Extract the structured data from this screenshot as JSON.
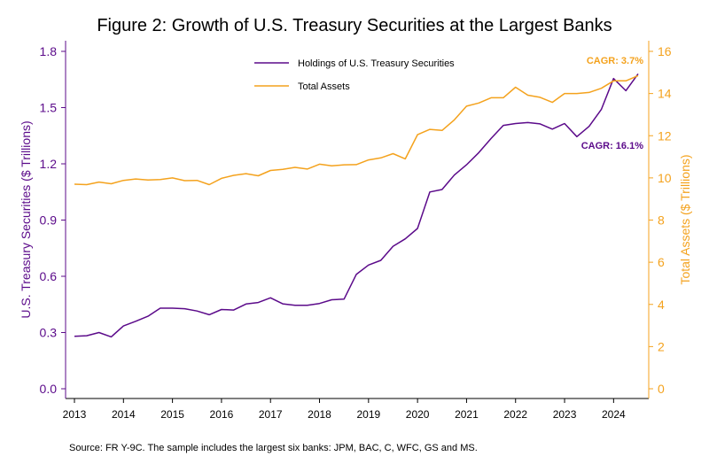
{
  "chart_data": {
    "type": "line",
    "title": "Figure 2: Growth of U.S. Treasury Securities at the Largest Banks",
    "source": "Source: FR Y-9C. The sample includes the largest six banks: JPM, BAC, C, WFC, GS and MS.",
    "x_ticks": [
      "2013",
      "2014",
      "2015",
      "2016",
      "2017",
      "2018",
      "2019",
      "2020",
      "2021",
      "2022",
      "2023",
      "2024"
    ],
    "xlim": [
      2013,
      2024.6
    ],
    "left_axis": {
      "label": "U.S. Treasury Securities ($ Trillions)",
      "ylim": [
        0,
        1.8
      ],
      "ticks": [
        "0.0",
        "0.3",
        "0.6",
        "0.9",
        "1.2",
        "1.5",
        "1.8"
      ],
      "color": "#5b0a8a"
    },
    "right_axis": {
      "label": "Total Assets ($ Trillions)",
      "ylim": [
        0,
        16
      ],
      "ticks": [
        "0",
        "2",
        "4",
        "6",
        "8",
        "10",
        "12",
        "14",
        "16"
      ],
      "color": "#f4a21d"
    },
    "series": [
      {
        "name": "Holdings of U.S. Treasury Securities",
        "axis": "left",
        "color": "#5b0a8a",
        "annotation": "CAGR: 16.1%",
        "x": [
          2013.0,
          2013.25,
          2013.5,
          2013.75,
          2014.0,
          2014.25,
          2014.5,
          2014.75,
          2015.0,
          2015.25,
          2015.5,
          2015.75,
          2016.0,
          2016.25,
          2016.5,
          2016.75,
          2017.0,
          2017.25,
          2017.5,
          2017.75,
          2018.0,
          2018.25,
          2018.5,
          2018.75,
          2019.0,
          2019.25,
          2019.5,
          2019.75,
          2020.0,
          2020.25,
          2020.5,
          2020.75,
          2021.0,
          2021.25,
          2021.5,
          2021.75,
          2022.0,
          2022.25,
          2022.5,
          2022.75,
          2023.0,
          2023.25,
          2023.5,
          2023.75,
          2024.0,
          2024.25,
          2024.5
        ],
        "values": [
          0.28,
          0.283,
          0.3,
          0.277,
          0.335,
          0.36,
          0.387,
          0.43,
          0.43,
          0.427,
          0.415,
          0.395,
          0.423,
          0.42,
          0.452,
          0.46,
          0.485,
          0.453,
          0.445,
          0.445,
          0.455,
          0.475,
          0.478,
          0.61,
          0.66,
          0.685,
          0.76,
          0.8,
          0.855,
          1.05,
          1.063,
          1.14,
          1.195,
          1.26,
          1.335,
          1.405,
          1.415,
          1.42,
          1.413,
          1.385,
          1.415,
          1.345,
          1.4,
          1.49,
          1.655,
          1.59,
          1.68
        ]
      },
      {
        "name": "Total Assets",
        "axis": "right",
        "color": "#f4a21d",
        "annotation": "CAGR: 3.7%",
        "x": [
          2013.0,
          2013.25,
          2013.5,
          2013.75,
          2014.0,
          2014.25,
          2014.5,
          2014.75,
          2015.0,
          2015.25,
          2015.5,
          2015.75,
          2016.0,
          2016.25,
          2016.5,
          2016.75,
          2017.0,
          2017.25,
          2017.5,
          2017.75,
          2018.0,
          2018.25,
          2018.5,
          2018.75,
          2019.0,
          2019.25,
          2019.5,
          2019.75,
          2020.0,
          2020.25,
          2020.5,
          2020.75,
          2021.0,
          2021.25,
          2021.5,
          2021.75,
          2022.0,
          2022.25,
          2022.5,
          2022.75,
          2023.0,
          2023.25,
          2023.5,
          2023.75,
          2024.0,
          2024.25,
          2024.5
        ],
        "values": [
          9.7,
          9.68,
          9.8,
          9.72,
          9.88,
          9.95,
          9.9,
          9.92,
          10.0,
          9.87,
          9.88,
          9.68,
          9.98,
          10.12,
          10.2,
          10.1,
          10.35,
          10.4,
          10.5,
          10.42,
          10.65,
          10.57,
          10.62,
          10.63,
          10.85,
          10.95,
          11.15,
          10.9,
          12.05,
          12.3,
          12.25,
          12.75,
          13.4,
          13.55,
          13.8,
          13.8,
          14.3,
          13.92,
          13.82,
          13.58,
          14.0,
          14.0,
          14.05,
          14.25,
          14.6,
          14.6,
          14.85
        ]
      }
    ],
    "legend": "top-center"
  }
}
